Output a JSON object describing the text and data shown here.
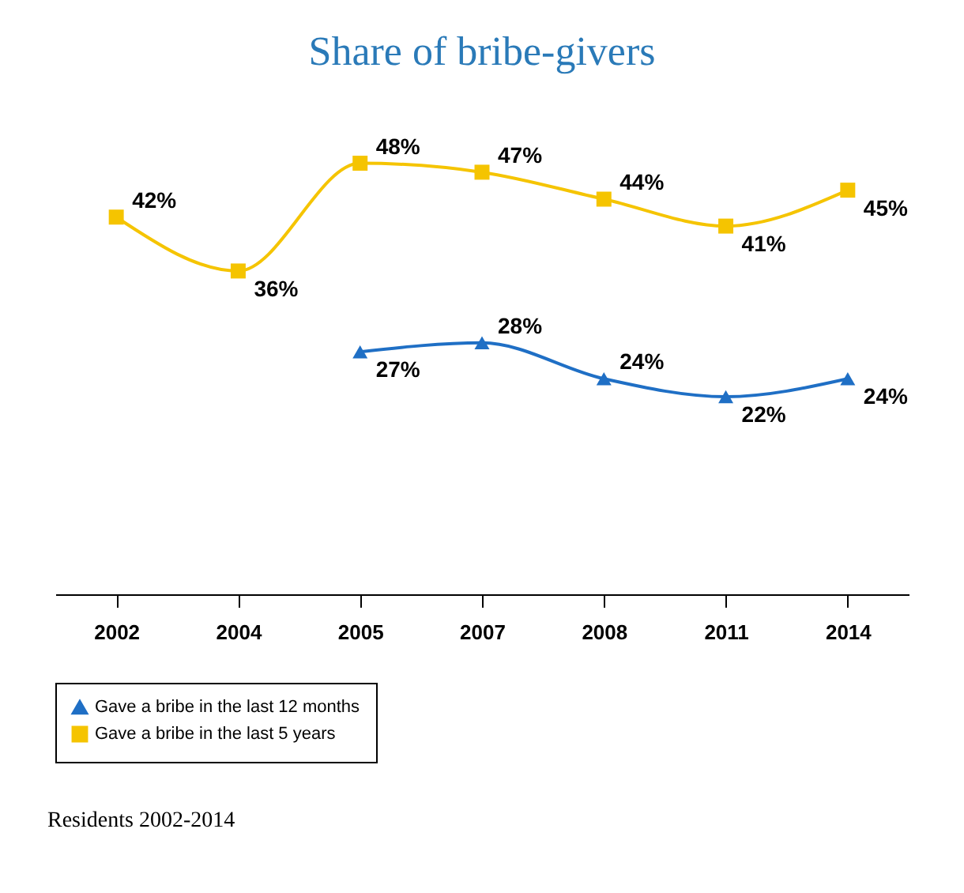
{
  "chart_data": {
    "type": "line",
    "title": "Share of bribe-givers",
    "categories": [
      "2002",
      "2004",
      "2005",
      "2007",
      "2008",
      "2011",
      "2014"
    ],
    "series": [
      {
        "name": "Gave a bribe in the last 12 months",
        "color": "#1f6fc5",
        "marker": "triangle",
        "values": [
          null,
          null,
          27,
          28,
          24,
          22,
          24
        ],
        "value_labels": [
          null,
          null,
          "27%",
          "28%",
          "24%",
          "22%",
          "24%"
        ]
      },
      {
        "name": "Gave a bribe in the last 5 years",
        "color": "#f5c400",
        "marker": "square",
        "values": [
          42,
          36,
          48,
          47,
          44,
          41,
          45
        ],
        "value_labels": [
          "42%",
          "36%",
          "48%",
          "47%",
          "44%",
          "41%",
          "45%"
        ]
      }
    ],
    "tick_labels": "x",
    "grid": false,
    "legend": "bottom",
    "line_style": "solid",
    "annotations": [
      "Residents 2002-2014"
    ]
  }
}
